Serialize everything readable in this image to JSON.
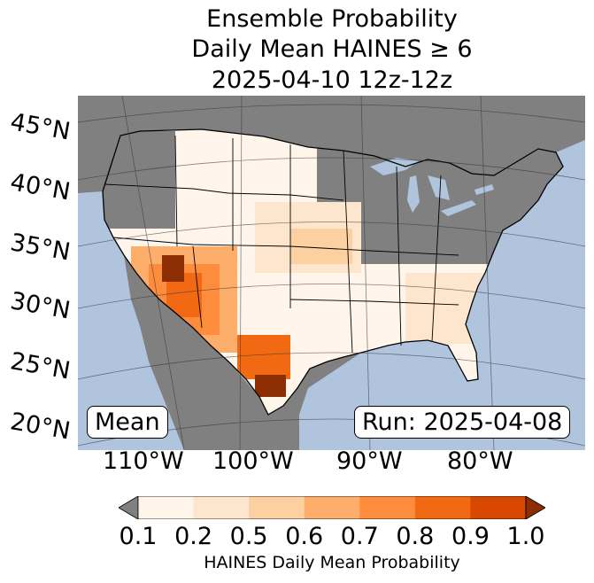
{
  "title": {
    "line1": "Ensemble Probability",
    "line2": "Daily Mean HAINES ≥ 6",
    "line3": "2025-04-10 12z-12z"
  },
  "lat_labels": [
    "45°N",
    "40°N",
    "35°N",
    "30°N",
    "25°N",
    "20°N"
  ],
  "lon_labels": [
    "110°W",
    "100°W",
    "90°W",
    "80°W"
  ],
  "mean_box": "Mean",
  "run_box": "Run: 2025-04-08",
  "colorbar": {
    "ticks": [
      "0.1",
      "0.2",
      "0.5",
      "0.6",
      "0.7",
      "0.8",
      "0.9",
      "1.0"
    ],
    "colors": [
      "#fff5eb",
      "#fee6ce",
      "#fdd0a2",
      "#fdae6b",
      "#fd8d3c",
      "#f16913",
      "#d94801",
      "#8c2d04"
    ],
    "under_color": "#808080",
    "label": "HAINES Daily Mean Probability"
  },
  "map_colors": {
    "ocean": "#b0c4de",
    "land_low": "#808080",
    "lakes": "#b0c4de"
  }
}
